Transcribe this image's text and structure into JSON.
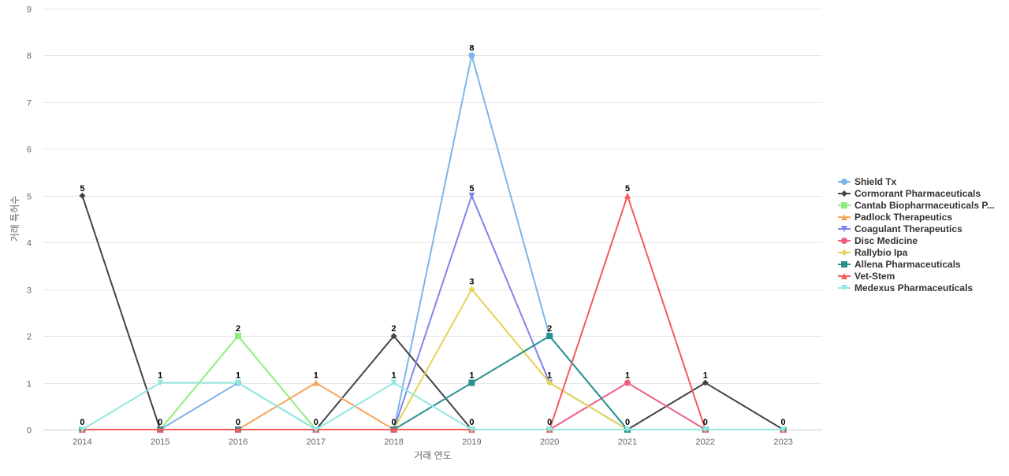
{
  "chart_data": {
    "type": "line",
    "title": "",
    "xlabel": "거래 연도",
    "ylabel": "거래 특허수",
    "x": [
      "2014",
      "2015",
      "2016",
      "2017",
      "2018",
      "2019",
      "2020",
      "2021",
      "2022",
      "2023"
    ],
    "ylim": [
      0,
      9
    ],
    "yticks": [
      0,
      1,
      2,
      3,
      4,
      5,
      6,
      7,
      8,
      9
    ],
    "grid": true,
    "legend_position": "right",
    "series": [
      {
        "name": "Shield Tx",
        "color": "#7cb5ec",
        "marker": "circle",
        "values": [
          0,
          0,
          1,
          0,
          0,
          8,
          2,
          0,
          0,
          0
        ]
      },
      {
        "name": "Cormorant Pharmaceuticals",
        "color": "#434348",
        "marker": "diamond",
        "values": [
          5,
          0,
          0,
          0,
          2,
          0,
          0,
          0,
          1,
          0
        ]
      },
      {
        "name": "Cantab Biopharmaceuticals P...",
        "color": "#90ed7d",
        "marker": "square",
        "values": [
          0,
          0,
          2,
          0,
          0,
          0,
          0,
          0,
          0,
          0
        ]
      },
      {
        "name": "Padlock Therapeutics",
        "color": "#f7a35c",
        "marker": "triangle",
        "values": [
          0,
          0,
          0,
          1,
          0,
          0,
          0,
          0,
          0,
          0
        ]
      },
      {
        "name": "Coagulant Therapeutics",
        "color": "#8085e9",
        "marker": "triangle-down",
        "values": [
          0,
          0,
          0,
          0,
          0,
          5,
          1,
          0,
          0,
          0
        ]
      },
      {
        "name": "Disc Medicine",
        "color": "#f15c80",
        "marker": "circle",
        "values": [
          0,
          0,
          0,
          0,
          0,
          0,
          0,
          1,
          0,
          0
        ]
      },
      {
        "name": "Rallybio Ipa",
        "color": "#e4d354",
        "marker": "diamond",
        "values": [
          0,
          0,
          0,
          0,
          0,
          3,
          1,
          0,
          0,
          0
        ]
      },
      {
        "name": "Allena Pharmaceuticals",
        "color": "#2b908f",
        "marker": "square",
        "values": [
          0,
          0,
          0,
          0,
          0,
          1,
          2,
          0,
          0,
          0
        ]
      },
      {
        "name": "Vet-Stem",
        "color": "#f45b5b",
        "marker": "triangle",
        "values": [
          0,
          0,
          0,
          0,
          0,
          0,
          0,
          5,
          0,
          0
        ]
      },
      {
        "name": "Medexus Pharmaceuticals",
        "color": "#91e8e1",
        "marker": "triangle-down",
        "values": [
          0,
          1,
          1,
          0,
          1,
          0,
          0,
          0,
          0,
          0
        ]
      }
    ],
    "data_labels": [
      {
        "x": "2014",
        "value": 5
      },
      {
        "x": "2014",
        "value": 0
      },
      {
        "x": "2015",
        "value": 1
      },
      {
        "x": "2015",
        "value": 0
      },
      {
        "x": "2016",
        "value": 2
      },
      {
        "x": "2016",
        "value": 1
      },
      {
        "x": "2016",
        "value": 0
      },
      {
        "x": "2017",
        "value": 1
      },
      {
        "x": "2017",
        "value": 0
      },
      {
        "x": "2018",
        "value": 2
      },
      {
        "x": "2018",
        "value": 1
      },
      {
        "x": "2018",
        "value": 0
      },
      {
        "x": "2019",
        "value": 8
      },
      {
        "x": "2019",
        "value": 5
      },
      {
        "x": "2019",
        "value": 3
      },
      {
        "x": "2019",
        "value": 1
      },
      {
        "x": "2019",
        "value": 0
      },
      {
        "x": "2020",
        "value": 2
      },
      {
        "x": "2020",
        "value": 1
      },
      {
        "x": "2020",
        "value": 0
      },
      {
        "x": "2021",
        "value": 5
      },
      {
        "x": "2021",
        "value": 1
      },
      {
        "x": "2021",
        "value": 0
      },
      {
        "x": "2022",
        "value": 1
      },
      {
        "x": "2022",
        "value": 0
      },
      {
        "x": "2023",
        "value": 0
      }
    ]
  }
}
